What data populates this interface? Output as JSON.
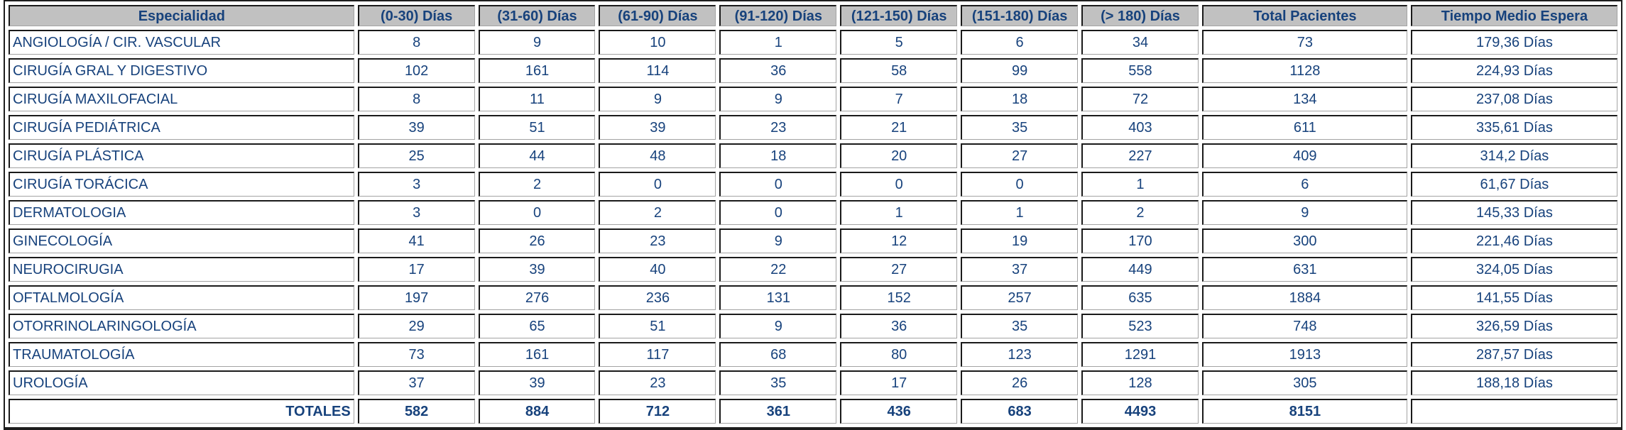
{
  "colors": {
    "header_bg": "#c1c1c1",
    "text_navy": "#17427c",
    "border_dark": "#1a1a1a",
    "border_light": "#a3a3a3",
    "cell_bg": "#ffffff"
  },
  "table": {
    "columns": [
      "Especialidad",
      "(0-30) Días",
      "(31-60) Días",
      "(61-90) Días",
      "(91-120) Días",
      "(121-150) Días",
      "(151-180) Días",
      "(> 180) Días",
      "Total Pacientes",
      "Tiempo Medio Espera"
    ],
    "rows": [
      {
        "especialidad": "ANGIOLOGÍA / CIR. VASCULAR",
        "values": [
          "8",
          "9",
          "10",
          "1",
          "5",
          "6",
          "34",
          "73"
        ],
        "tiempo_medio": "179,36 Días"
      },
      {
        "especialidad": "CIRUGÍA GRAL Y DIGESTIVO",
        "values": [
          "102",
          "161",
          "114",
          "36",
          "58",
          "99",
          "558",
          "1128"
        ],
        "tiempo_medio": "224,93 Días"
      },
      {
        "especialidad": "CIRUGÍA MAXILOFACIAL",
        "values": [
          "8",
          "11",
          "9",
          "9",
          "7",
          "18",
          "72",
          "134"
        ],
        "tiempo_medio": "237,08 Días"
      },
      {
        "especialidad": "CIRUGÍA PEDIÁTRICA",
        "values": [
          "39",
          "51",
          "39",
          "23",
          "21",
          "35",
          "403",
          "611"
        ],
        "tiempo_medio": "335,61 Días"
      },
      {
        "especialidad": "CIRUGÍA PLÁSTICA",
        "values": [
          "25",
          "44",
          "48",
          "18",
          "20",
          "27",
          "227",
          "409"
        ],
        "tiempo_medio": "314,2 Días"
      },
      {
        "especialidad": "CIRUGÍA TORÁCICA",
        "values": [
          "3",
          "2",
          "0",
          "0",
          "0",
          "0",
          "1",
          "6"
        ],
        "tiempo_medio": "61,67 Días"
      },
      {
        "especialidad": "DERMATOLOGIA",
        "values": [
          "3",
          "0",
          "2",
          "0",
          "1",
          "1",
          "2",
          "9"
        ],
        "tiempo_medio": "145,33 Días"
      },
      {
        "especialidad": "GINECOLOGÍA",
        "values": [
          "41",
          "26",
          "23",
          "9",
          "12",
          "19",
          "170",
          "300"
        ],
        "tiempo_medio": "221,46 Días"
      },
      {
        "especialidad": "NEUROCIRUGIA",
        "values": [
          "17",
          "39",
          "40",
          "22",
          "27",
          "37",
          "449",
          "631"
        ],
        "tiempo_medio": "324,05 Días"
      },
      {
        "especialidad": "OFTALMOLOGÍA",
        "values": [
          "197",
          "276",
          "236",
          "131",
          "152",
          "257",
          "635",
          "1884"
        ],
        "tiempo_medio": "141,55 Días"
      },
      {
        "especialidad": "OTORRINOLARINGOLOGÍA",
        "values": [
          "29",
          "65",
          "51",
          "9",
          "36",
          "35",
          "523",
          "748"
        ],
        "tiempo_medio": "326,59 Días"
      },
      {
        "especialidad": "TRAUMATOLOGÍA",
        "values": [
          "73",
          "161",
          "117",
          "68",
          "80",
          "123",
          "1291",
          "1913"
        ],
        "tiempo_medio": "287,57 Días"
      },
      {
        "especialidad": "UROLOGÍA",
        "values": [
          "37",
          "39",
          "23",
          "35",
          "17",
          "26",
          "128",
          "305"
        ],
        "tiempo_medio": "188,18 Días"
      }
    ],
    "totals": {
      "label": "TOTALES",
      "values": [
        "582",
        "884",
        "712",
        "361",
        "436",
        "683",
        "4493",
        "8151"
      ],
      "tiempo_medio": ""
    }
  }
}
